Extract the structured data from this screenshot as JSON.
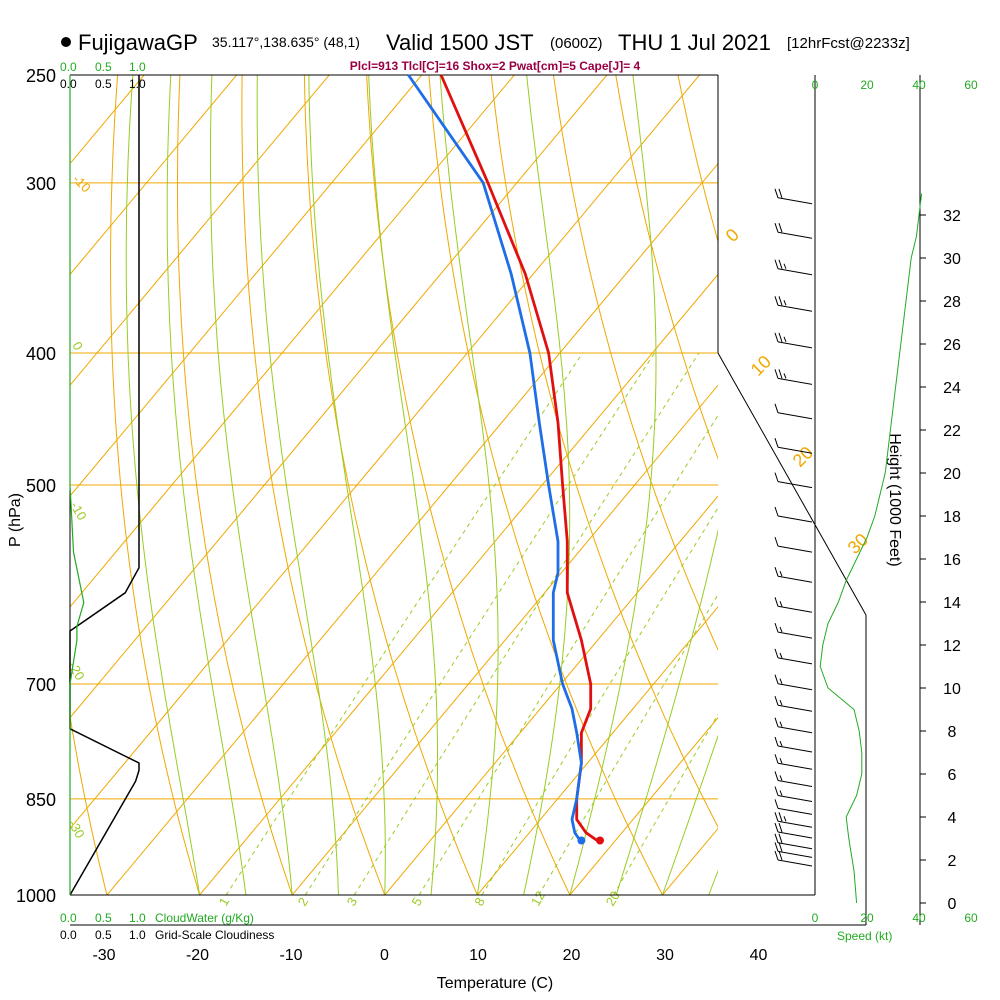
{
  "header": {
    "station": "FujigawaGP",
    "coords": "35.117°,138.635° (48,1)",
    "valid": "Valid 1500 JST",
    "utc": "(0600Z)",
    "date": "THU 1 Jul 2021",
    "forecast": "[12hrFcst@2233z]"
  },
  "indices": "Plcl=913 Tlcl[C]=16 Shox=2 Pwat[cm]=5 Cape[J]= 4",
  "colors": {
    "temperature": "#e01010",
    "dewpoint": "#1e6ee8",
    "isotherm": "#f0a800",
    "dry_adiabat": "#f0a800",
    "moist_adiabat": "#99cc22",
    "mixing_ratio": "#99cc22",
    "cloud_water": "#22aa22",
    "indices": "#990044",
    "green_label": "#22aa22"
  },
  "left_panel": {
    "top_green_scale": [
      "0.0",
      "0.5",
      "1.0"
    ],
    "top_black_scale": [
      "0.0",
      "0.5",
      "1.0"
    ],
    "bottom_green_label": "CloudWater (g/Kg)",
    "bottom_black_label": "Grid-Scale Cloudiness",
    "bottom_green_scale": [
      "0.0",
      "0.5",
      "1.0"
    ],
    "bottom_black_scale": [
      "0.0",
      "0.5",
      "1.0"
    ]
  },
  "right_panel": {
    "speed_label": "Speed (kt)",
    "speed_ticks_top": [
      "0",
      "20",
      "40",
      "60"
    ],
    "speed_ticks_bottom": [
      "0",
      "20",
      "40",
      "60"
    ],
    "height_label": "Height (1000 Feet)",
    "height_ticks": [
      "0",
      "2",
      "4",
      "6",
      "8",
      "10",
      "12",
      "14",
      "16",
      "18",
      "20",
      "22",
      "24",
      "26",
      "28",
      "30",
      "32"
    ]
  },
  "chart_data": {
    "type": "line",
    "title": "FujigawaGP Valid 1500 JST (0600Z) THU 1 Jul 2021",
    "xlabel": "Temperature (C)",
    "ylabel": "P (hPa)",
    "x_ticks": [
      -30,
      -20,
      -10,
      0,
      10,
      20,
      30,
      40
    ],
    "p_ticks": [
      250,
      300,
      400,
      500,
      700,
      850,
      1000
    ],
    "x_range": [
      -34,
      36
    ],
    "p_range": [
      250,
      1000
    ],
    "log_pressure": true,
    "skew": true,
    "isotherm_labels": [
      "-10",
      "0",
      "10",
      "20",
      "30"
    ],
    "isotherm_label_left": [
      "-10",
      "0",
      "-10",
      "-20",
      "-30"
    ],
    "mixing_ratio_labels": [
      "1",
      "2",
      "3",
      "5",
      "8",
      "12",
      "20"
    ],
    "series": [
      {
        "key": "temperature",
        "pressure": [
          250,
          300,
          350,
          400,
          450,
          500,
          550,
          580,
          600,
          650,
          700,
          730,
          760,
          800,
          850,
          880,
          900,
          915
        ],
        "x": [
          6,
          11,
          15,
          17.5,
          18.5,
          19,
          19.5,
          19.5,
          19.5,
          21,
          22,
          22,
          21,
          21,
          20.5,
          20.5,
          21.5,
          23
        ]
      },
      {
        "key": "dewpoint",
        "pressure": [
          250,
          300,
          350,
          400,
          450,
          500,
          550,
          580,
          600,
          650,
          700,
          730,
          760,
          800,
          850,
          880,
          900,
          915
        ],
        "x": [
          2.5,
          10.5,
          13.5,
          15.5,
          16.5,
          17.5,
          18.5,
          18.5,
          18,
          18,
          19,
          20,
          20.5,
          21,
          20.5,
          20,
          20.3,
          21
        ]
      }
    ],
    "wind_barbs": [
      {
        "height_kft": 32.8,
        "speed_kt": 20
      },
      {
        "height_kft": 31.2,
        "speed_kt": 20
      },
      {
        "height_kft": 29.5,
        "speed_kt": 15
      },
      {
        "height_kft": 27.8,
        "speed_kt": 15
      },
      {
        "height_kft": 26.1,
        "speed_kt": 15
      },
      {
        "height_kft": 24.4,
        "speed_kt": 15
      },
      {
        "height_kft": 22.8,
        "speed_kt": 10
      },
      {
        "height_kft": 21.2,
        "speed_kt": 10
      },
      {
        "height_kft": 19.6,
        "speed_kt": 10
      },
      {
        "height_kft": 18,
        "speed_kt": 10
      },
      {
        "height_kft": 16.6,
        "speed_kt": 10
      },
      {
        "height_kft": 15.2,
        "speed_kt": 5
      },
      {
        "height_kft": 13.8,
        "speed_kt": 5
      },
      {
        "height_kft": 12.6,
        "speed_kt": 5
      },
      {
        "height_kft": 11.4,
        "speed_kt": 5
      },
      {
        "height_kft": 10.2,
        "speed_kt": 5
      },
      {
        "height_kft": 9.2,
        "speed_kt": 5
      },
      {
        "height_kft": 8.2,
        "speed_kt": 5
      },
      {
        "height_kft": 7.3,
        "speed_kt": 5
      },
      {
        "height_kft": 6.5,
        "speed_kt": 5
      },
      {
        "height_kft": 5.7,
        "speed_kt": 5
      },
      {
        "height_kft": 5.0,
        "speed_kt": 5
      },
      {
        "height_kft": 4.4,
        "speed_kt": 10
      },
      {
        "height_kft": 3.8,
        "speed_kt": 15
      },
      {
        "height_kft": 3.3,
        "speed_kt": 20
      },
      {
        "height_kft": 2.8,
        "speed_kt": 20
      },
      {
        "height_kft": 2.4,
        "speed_kt": 20
      },
      {
        "height_kft": 2.0,
        "speed_kt": 20
      }
    ],
    "speed_profile": {
      "height_kft": [
        0,
        1.5,
        3,
        4,
        5,
        6,
        7,
        8,
        9,
        10,
        11,
        12,
        13,
        14,
        15,
        16,
        17,
        18,
        19,
        20,
        22,
        24,
        26,
        28,
        30,
        31,
        32,
        33
      ],
      "speed_kt": [
        16,
        15,
        13,
        12,
        16,
        18,
        18,
        17,
        15,
        5,
        2,
        3,
        5,
        9,
        12,
        16,
        20,
        23,
        25,
        27,
        29,
        31,
        33,
        35,
        37,
        39,
        40,
        41
      ]
    },
    "cloudiness_profile": {
      "pressure": [
        250,
        575,
        600,
        640,
        645,
        755,
        800,
        810,
        825,
        1000
      ],
      "value": [
        1.0,
        1.0,
        0.8,
        0.0,
        0.0,
        0.0,
        1.0,
        1.0,
        0.95,
        0.0
      ]
    },
    "cloudwater_profile": {
      "pressure": [
        250,
        500,
        560,
        610,
        635,
        650,
        700,
        760,
        800,
        850,
        900,
        1000
      ],
      "value": [
        0.0,
        0.0,
        0.05,
        0.2,
        0.1,
        0.1,
        0.0,
        0.0,
        0.0,
        0.0,
        0.0,
        0.0
      ]
    }
  }
}
